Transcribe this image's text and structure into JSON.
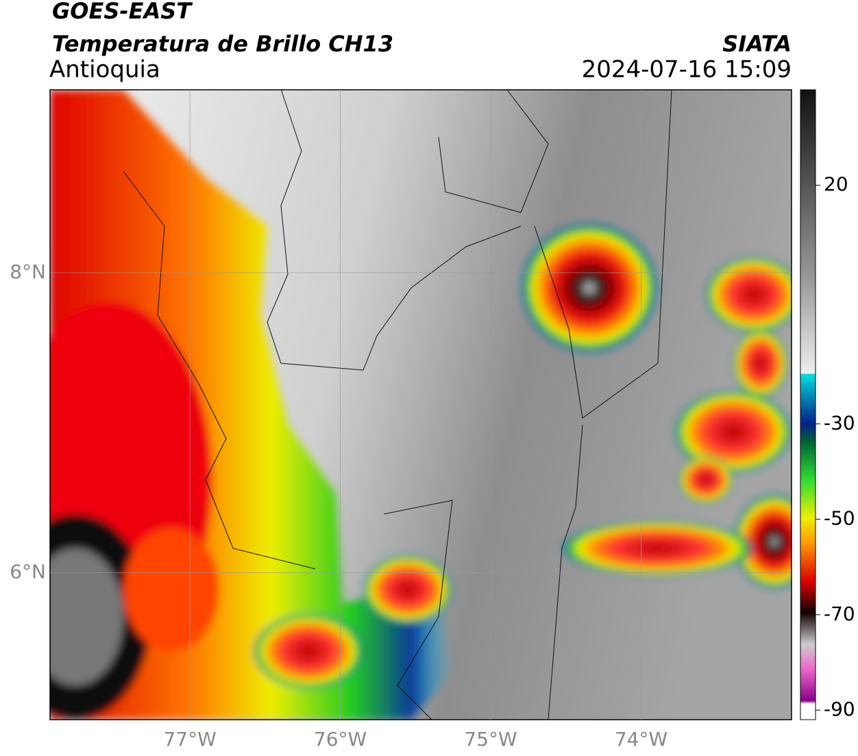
{
  "header": {
    "title": "GOES-EAST",
    "subtitle": "Temperatura de Brillo CH13",
    "region": "Antioquia",
    "source": "SIATA",
    "datetime": "2024-07-16 15:09"
  },
  "map": {
    "xlim": [
      -77.93,
      -73
    ],
    "ylim": [
      5.02,
      9.22
    ],
    "xticks": [
      {
        "value": -77,
        "label": "77°W"
      },
      {
        "value": -76,
        "label": "76°W"
      },
      {
        "value": -75,
        "label": "75°W"
      },
      {
        "value": -74,
        "label": "74°W"
      }
    ],
    "yticks": [
      {
        "value": 8,
        "label": "8°N"
      },
      {
        "value": 6,
        "label": "6°N"
      }
    ],
    "grid": true
  },
  "colorbar": {
    "lim": [
      -92,
      40
    ],
    "ticks": [
      20,
      -30,
      -50,
      -70,
      -90
    ]
  }
}
